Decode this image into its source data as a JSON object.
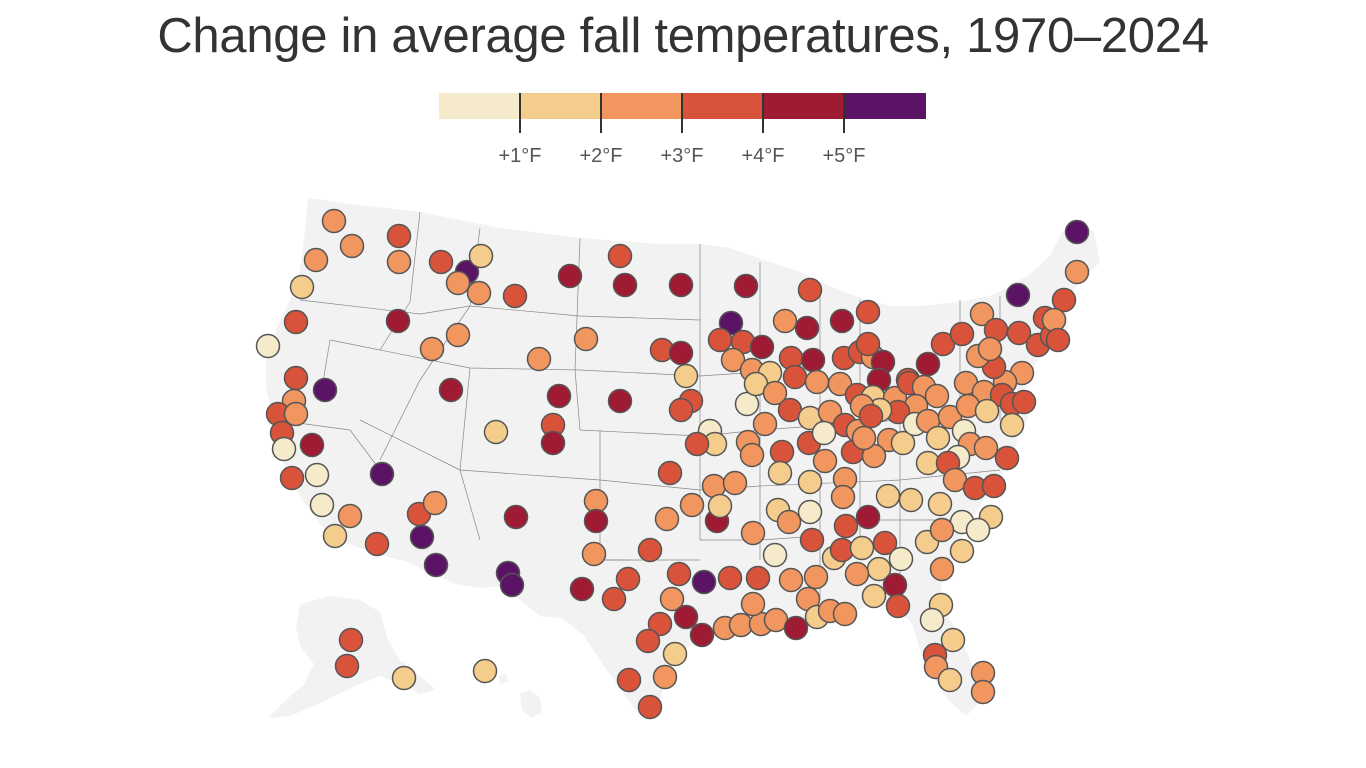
{
  "title": "Change in average fall temperatures, 1970–2024",
  "legend": {
    "bins": [
      {
        "range": "< +1°F",
        "color": "#f5ebcb"
      },
      {
        "range": "+1–2°F",
        "color": "#f4cc8c"
      },
      {
        "range": "+2–3°F",
        "color": "#f0965e"
      },
      {
        "range": "+3–4°F",
        "color": "#d9533b"
      },
      {
        "range": "+4–5°F",
        "color": "#9e1b33"
      },
      {
        "range": "> +5°F",
        "color": "#5b1365"
      }
    ],
    "tick_labels": [
      "+1°F",
      "+2°F",
      "+3°F",
      "+4°F",
      "+5°F"
    ]
  },
  "map": {
    "land_color": "#f2f2f2",
    "border_color": "#888888",
    "marker_stroke": "#555555",
    "station_count": 240
  }
}
